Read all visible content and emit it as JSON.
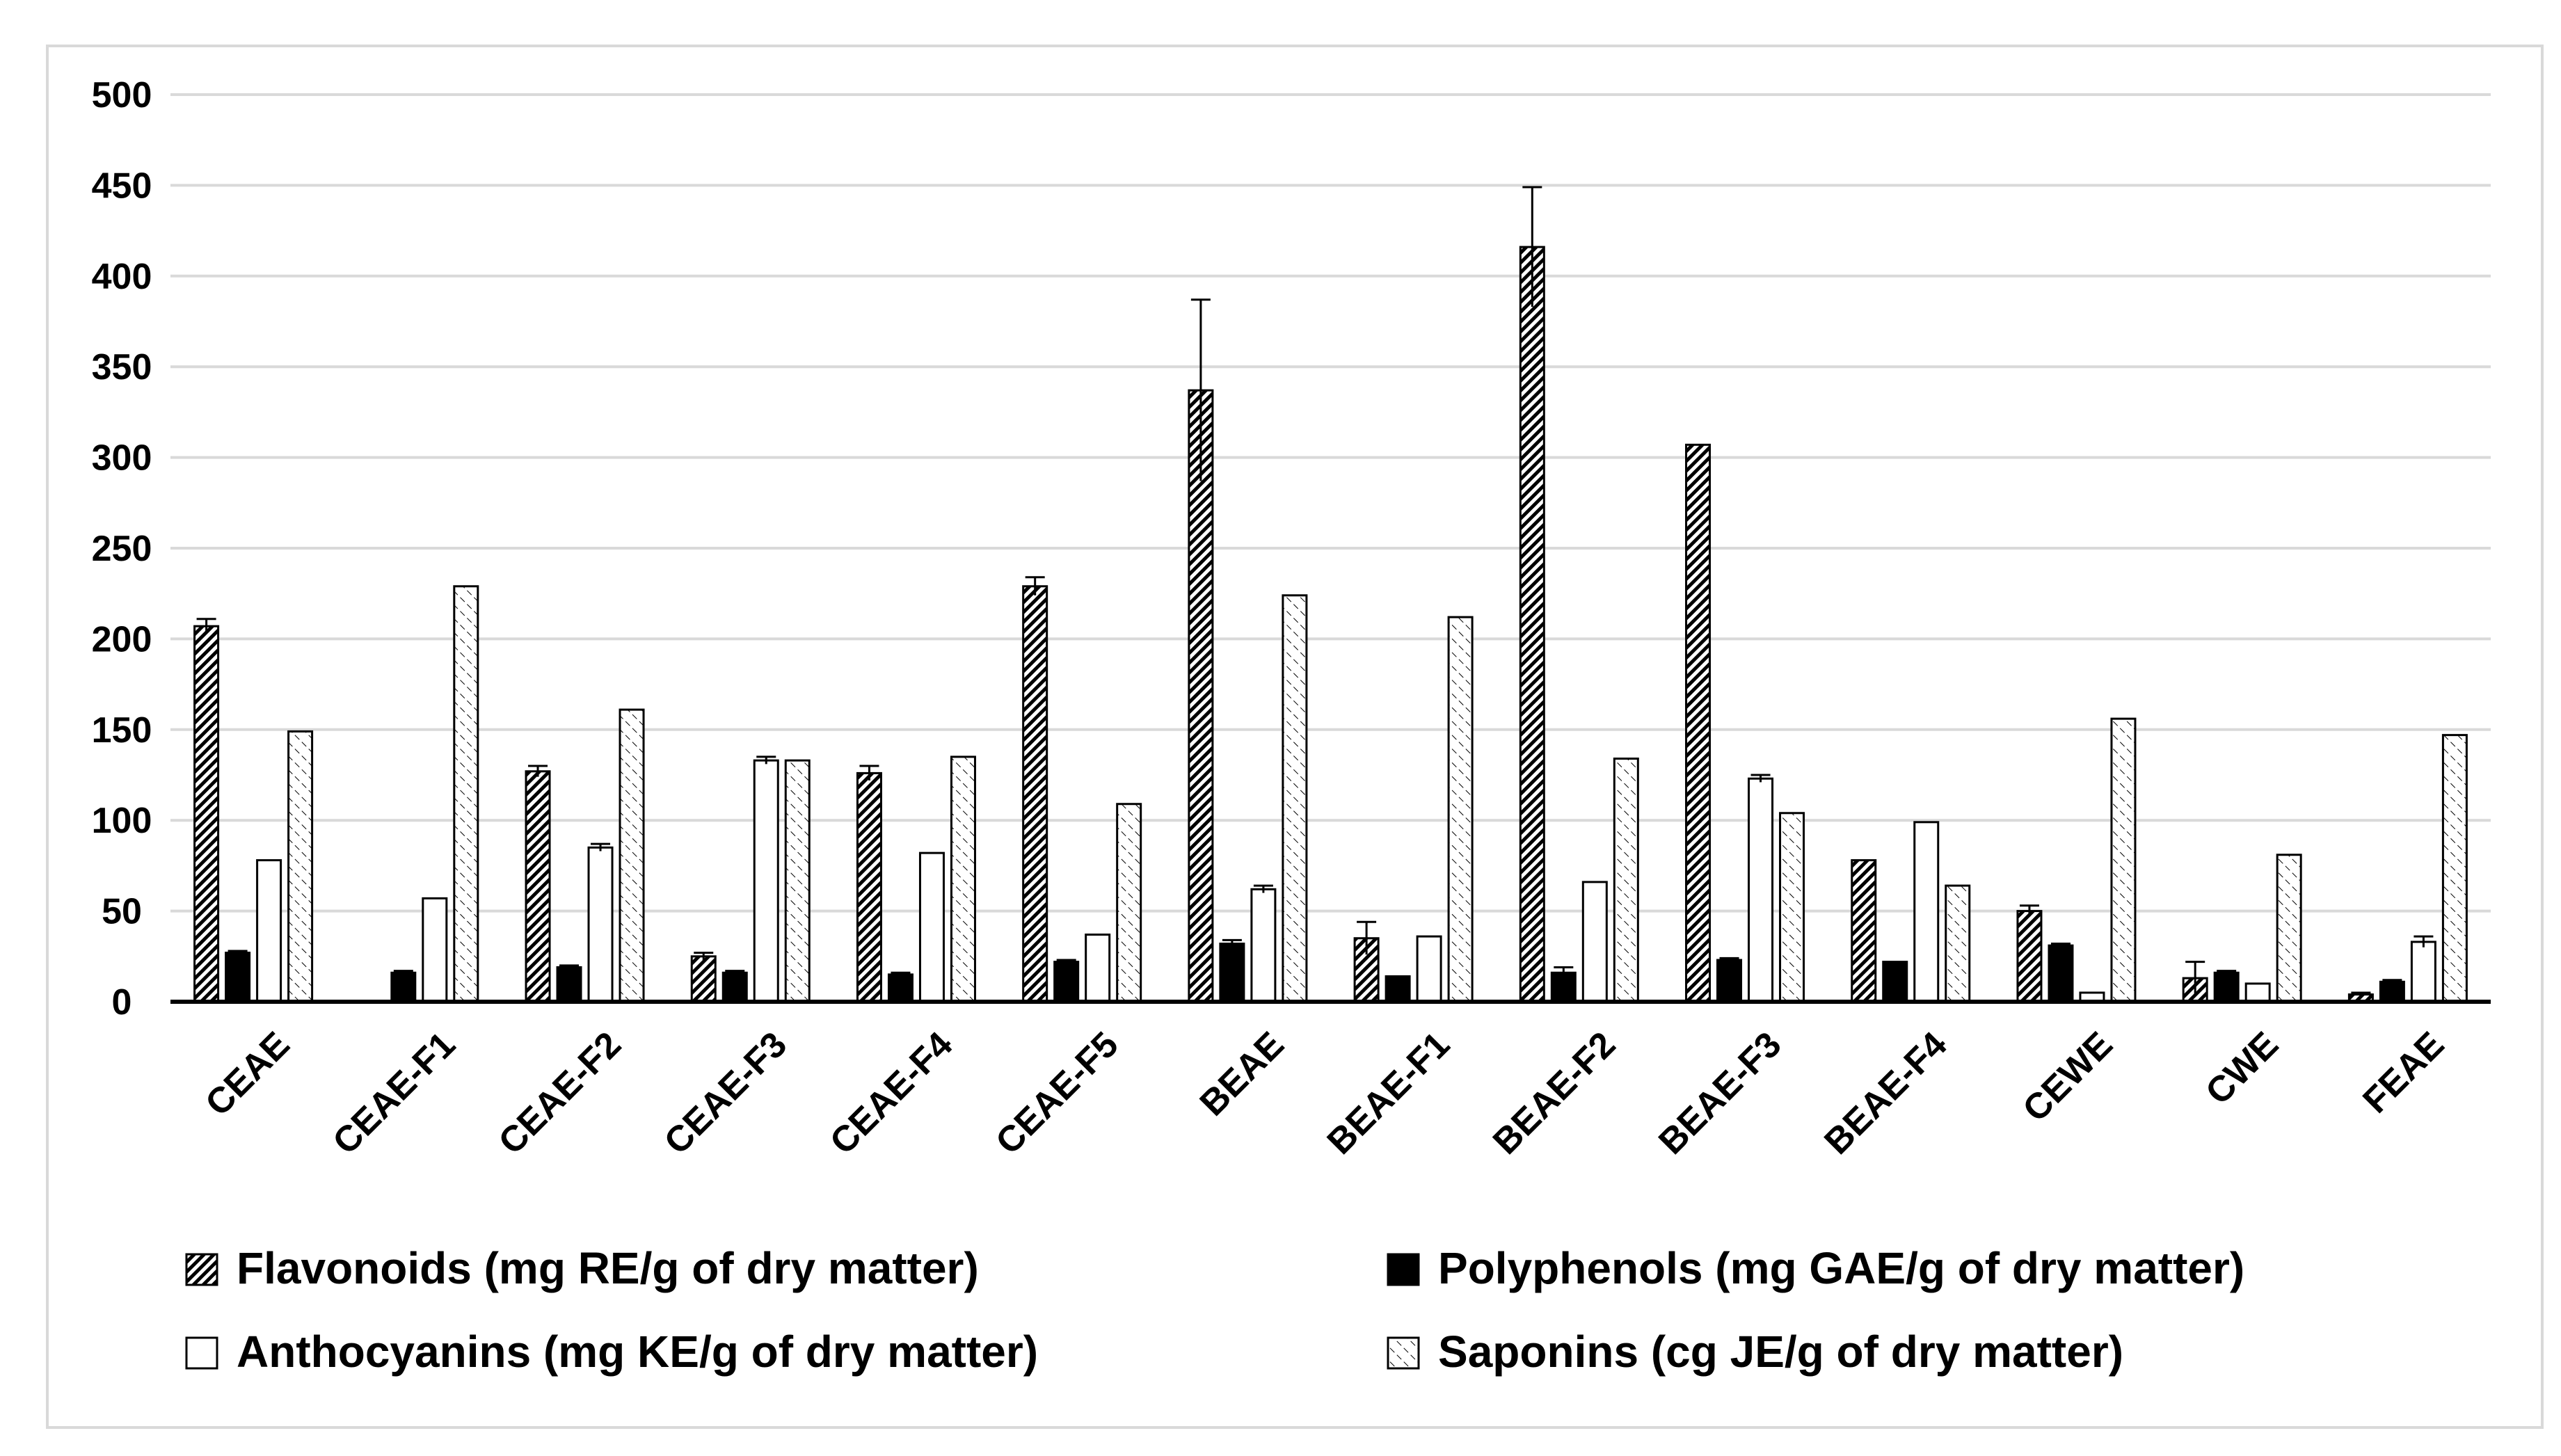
{
  "chart_data": {
    "type": "bar",
    "title": "",
    "xlabel": "",
    "ylabel": "",
    "ylim": [
      0,
      500
    ],
    "yticks": [
      0,
      50,
      100,
      150,
      200,
      250,
      300,
      350,
      400,
      450,
      500
    ],
    "grid": true,
    "legend_position": "bottom",
    "categories": [
      "CEAE",
      "CEAE-F1",
      "CEAE-F2",
      "CEAE-F3",
      "CEAE-F4",
      "CEAE-F5",
      "BEAE",
      "BEAE-F1",
      "BEAE-F2",
      "BEAE-F3",
      "BEAE-F4",
      "CEWE",
      "CWE",
      "FEAE"
    ],
    "series": [
      {
        "name": "Flavonoids (mg RE/g of dry matter)",
        "pattern": "diag-dense",
        "values": [
          207,
          0,
          127,
          25,
          126,
          229,
          337,
          35,
          416,
          307,
          78,
          50,
          13,
          4
        ],
        "errors": [
          4,
          0,
          3,
          2,
          4,
          5,
          50,
          9,
          33,
          0,
          0,
          3,
          9,
          1
        ]
      },
      {
        "name": "Polyphenols (mg GAE/g of dry matter)",
        "pattern": "solid",
        "values": [
          27,
          16,
          19,
          16,
          15,
          22,
          32,
          14,
          16,
          23,
          22,
          31,
          16,
          11
        ],
        "errors": [
          1,
          1,
          1,
          1,
          1,
          1,
          2,
          0,
          3,
          1,
          0,
          1,
          1,
          1
        ]
      },
      {
        "name": "Anthocyanins (mg KE/g of dry matter)",
        "pattern": "white",
        "values": [
          78,
          57,
          85,
          133,
          82,
          37,
          62,
          36,
          66,
          123,
          99,
          5,
          10,
          33
        ],
        "errors": [
          0,
          0,
          2,
          2,
          0,
          0,
          2,
          0,
          0,
          2,
          0,
          0,
          0,
          3
        ]
      },
      {
        "name": "Saponins (cg JE/g of dry matter)",
        "pattern": "diag-sparse",
        "values": [
          149,
          229,
          161,
          133,
          135,
          109,
          224,
          212,
          134,
          104,
          64,
          156,
          81,
          147
        ],
        "errors": [
          0,
          0,
          0,
          0,
          0,
          0,
          0,
          0,
          0,
          0,
          0,
          0,
          0,
          0
        ]
      }
    ]
  }
}
